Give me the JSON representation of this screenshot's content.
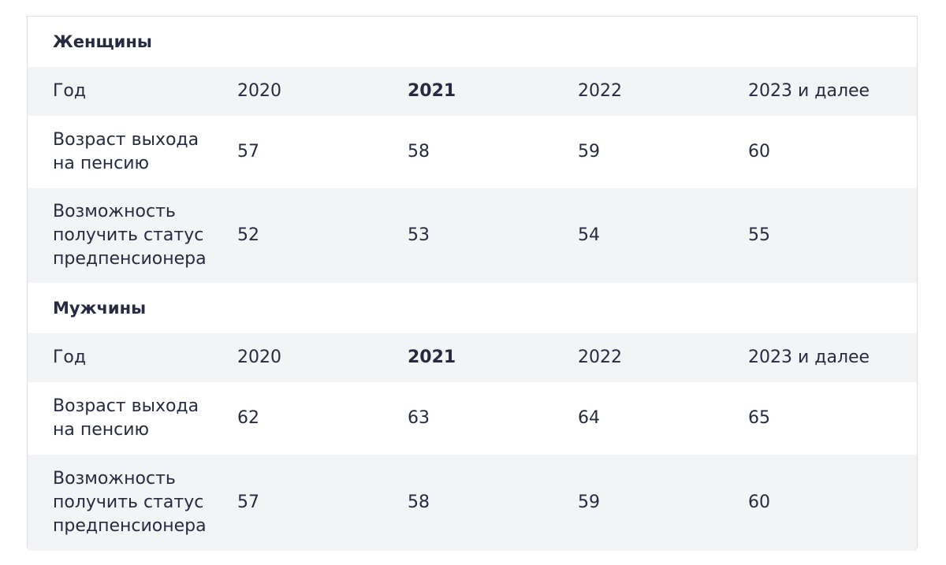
{
  "women": {
    "title": "Женщины",
    "year_row": {
      "label": "Год",
      "cols": [
        "2020",
        "2021",
        "2022",
        "2023 и далее"
      ]
    },
    "age_row": {
      "label_line1": "Возраст выхода",
      "label_line2": "на пенсию",
      "values": [
        "57",
        "58",
        "59",
        "60"
      ]
    },
    "pre_row": {
      "label_line1": "Возможность",
      "label_line2": "получить статус",
      "label_line3": "предпенсионера",
      "values": [
        "52",
        "53",
        "54",
        "55"
      ]
    }
  },
  "men": {
    "title": "Мужчины",
    "year_row": {
      "label": "Год",
      "cols": [
        "2020",
        "2021",
        "2022",
        "2023 и далее"
      ]
    },
    "age_row": {
      "label_line1": "Возраст выхода",
      "label_line2": "на пенсию",
      "values": [
        "62",
        "63",
        "64",
        "65"
      ]
    },
    "pre_row": {
      "label_line1": "Возможность",
      "label_line2": "получить статус",
      "label_line3": "предпенсионера",
      "values": [
        "57",
        "58",
        "59",
        "60"
      ]
    }
  },
  "colors": {
    "text": "#262b41",
    "stripe": "#f3f4f6",
    "border": "#dcdee3"
  }
}
